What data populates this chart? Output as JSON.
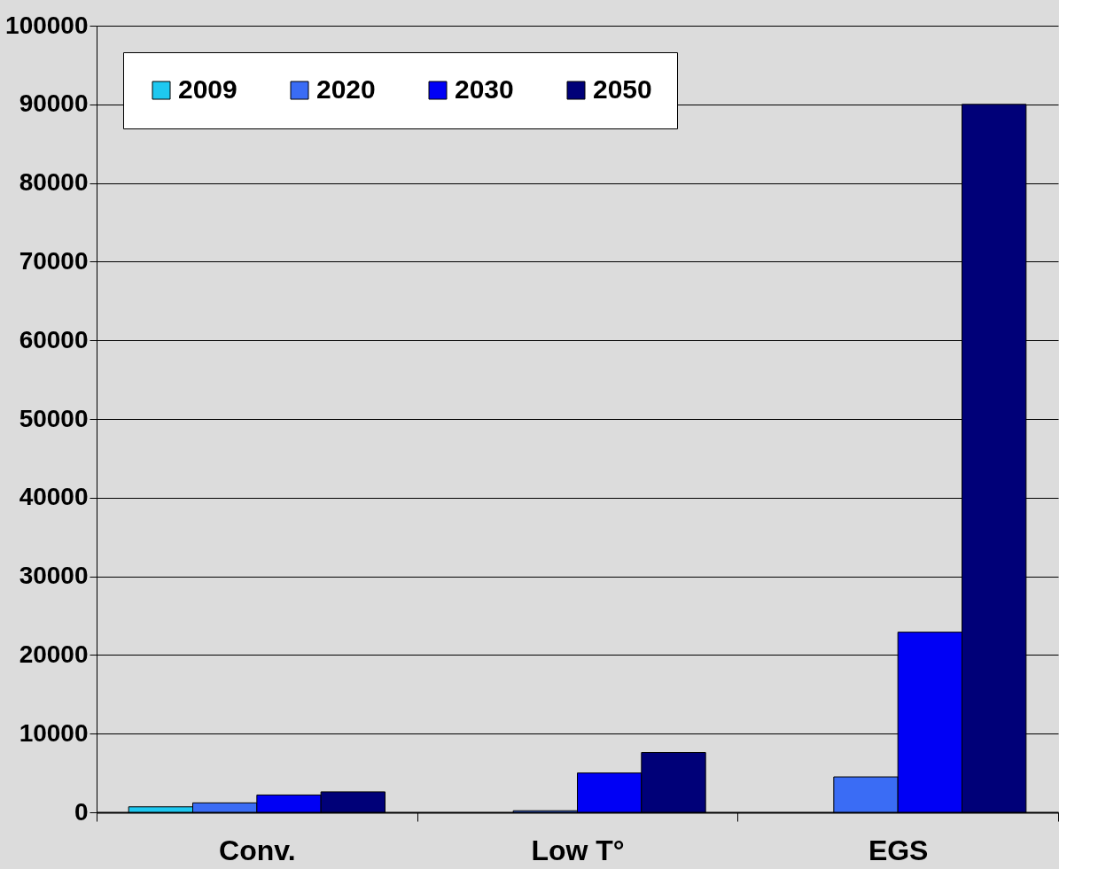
{
  "chart_data": {
    "type": "bar",
    "categories": [
      "Conv.",
      "Low T°",
      "EGS"
    ],
    "series": [
      {
        "name": "2009",
        "color": "#1ec8f0",
        "values": [
          700,
          null,
          null
        ]
      },
      {
        "name": "2020",
        "color": "#3a6cf5",
        "values": [
          1200,
          200,
          4500
        ]
      },
      {
        "name": "2030",
        "color": "#0000f5",
        "values": [
          2200,
          5000,
          22900
        ]
      },
      {
        "name": "2050",
        "color": "#000078",
        "values": [
          2600,
          7600,
          90000
        ]
      }
    ],
    "ylim": [
      0,
      100000
    ],
    "yticks": [
      0,
      10000,
      20000,
      30000,
      40000,
      50000,
      60000,
      70000,
      80000,
      90000,
      100000
    ],
    "grid": "y",
    "legend": "top left"
  }
}
